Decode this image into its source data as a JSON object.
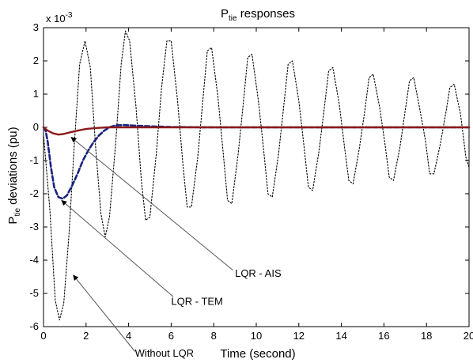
{
  "chart_data": {
    "type": "line",
    "title": {
      "main": "P",
      "sub": "tie",
      "rest": " responses"
    },
    "xlabel": "Time (second)",
    "ylabel": {
      "main": "P",
      "sub": "tie",
      "rest": " deviations (pu)"
    },
    "y_multiplier": {
      "base": "x 10",
      "exp": "-3"
    },
    "xlim": [
      0,
      20
    ],
    "ylim": [
      -6,
      3
    ],
    "xticks": [
      0,
      2,
      4,
      6,
      8,
      10,
      12,
      14,
      16,
      18,
      20
    ],
    "yticks": [
      -6,
      -5,
      -4,
      -3,
      -2,
      -1,
      0,
      1,
      2,
      3
    ],
    "grid": false,
    "series": [
      {
        "name": "Without LQR",
        "color": "#000000",
        "style": "dotted",
        "points": [
          [
            0,
            -0.2
          ],
          [
            0.3,
            -2.5
          ],
          [
            0.55,
            -5.2
          ],
          [
            0.75,
            -5.8
          ],
          [
            0.95,
            -5.3
          ],
          [
            1.2,
            -3.2
          ],
          [
            1.45,
            -0.5
          ],
          [
            1.7,
            1.9
          ],
          [
            1.95,
            2.6
          ],
          [
            2.2,
            1.8
          ],
          [
            2.45,
            -0.6
          ],
          [
            2.7,
            -2.6
          ],
          [
            2.9,
            -3.3
          ],
          [
            3.1,
            -2.7
          ],
          [
            3.4,
            -0.4
          ],
          [
            3.65,
            1.9
          ],
          [
            3.85,
            2.9
          ],
          [
            4.05,
            2.6
          ],
          [
            4.35,
            0.6
          ],
          [
            4.6,
            -1.6
          ],
          [
            4.8,
            -2.8
          ],
          [
            5.0,
            -2.7
          ],
          [
            5.3,
            -0.8
          ],
          [
            5.55,
            1.2
          ],
          [
            5.8,
            2.6
          ],
          [
            6.0,
            2.6
          ],
          [
            6.3,
            0.8
          ],
          [
            6.55,
            -1.1
          ],
          [
            6.75,
            -2.4
          ],
          [
            6.95,
            -2.4
          ],
          [
            7.25,
            -0.9
          ],
          [
            7.5,
            0.9
          ],
          [
            7.7,
            2.3
          ],
          [
            7.9,
            2.4
          ],
          [
            8.2,
            0.9
          ],
          [
            8.45,
            -0.8
          ],
          [
            8.65,
            -2.2
          ],
          [
            8.85,
            -2.3
          ],
          [
            9.15,
            -0.8
          ],
          [
            9.4,
            0.8
          ],
          [
            9.6,
            2.1
          ],
          [
            9.8,
            2.2
          ],
          [
            10.1,
            0.8
          ],
          [
            10.35,
            -0.7
          ],
          [
            10.55,
            -2.0
          ],
          [
            10.75,
            -2.1
          ],
          [
            11.05,
            -0.8
          ],
          [
            11.3,
            0.7
          ],
          [
            11.5,
            1.9
          ],
          [
            11.7,
            2.0
          ],
          [
            12.0,
            0.8
          ],
          [
            12.25,
            -0.6
          ],
          [
            12.45,
            -1.8
          ],
          [
            12.65,
            -1.9
          ],
          [
            12.95,
            -0.7
          ],
          [
            13.2,
            0.6
          ],
          [
            13.4,
            1.7
          ],
          [
            13.6,
            1.8
          ],
          [
            13.9,
            0.7
          ],
          [
            14.15,
            -0.6
          ],
          [
            14.35,
            -1.6
          ],
          [
            14.55,
            -1.7
          ],
          [
            14.85,
            -0.6
          ],
          [
            15.1,
            0.5
          ],
          [
            15.3,
            1.5
          ],
          [
            15.5,
            1.6
          ],
          [
            15.8,
            0.6
          ],
          [
            16.05,
            -0.5
          ],
          [
            16.25,
            -1.5
          ],
          [
            16.45,
            -1.6
          ],
          [
            16.75,
            -0.6
          ],
          [
            17.0,
            0.5
          ],
          [
            17.2,
            1.4
          ],
          [
            17.4,
            1.5
          ],
          [
            17.7,
            0.5
          ],
          [
            17.95,
            -0.4
          ],
          [
            18.15,
            -1.4
          ],
          [
            18.35,
            -1.4
          ],
          [
            18.65,
            -0.5
          ],
          [
            18.9,
            0.4
          ],
          [
            19.1,
            1.2
          ],
          [
            19.3,
            1.3
          ],
          [
            19.6,
            0.4
          ],
          [
            19.85,
            -0.9
          ],
          [
            20.0,
            -1.2
          ]
        ]
      },
      {
        "name": "LQR - TEM",
        "color": "#1a237e",
        "style": "dashed",
        "points": [
          [
            0,
            0
          ],
          [
            0.1,
            -0.1
          ],
          [
            0.2,
            -0.45
          ],
          [
            0.35,
            -1.2
          ],
          [
            0.5,
            -1.8
          ],
          [
            0.7,
            -2.1
          ],
          [
            0.9,
            -2.15
          ],
          [
            1.1,
            -2.05
          ],
          [
            1.35,
            -1.75
          ],
          [
            1.6,
            -1.4
          ],
          [
            1.85,
            -1.0
          ],
          [
            2.1,
            -0.7
          ],
          [
            2.35,
            -0.45
          ],
          [
            2.6,
            -0.25
          ],
          [
            2.85,
            -0.1
          ],
          [
            3.1,
            0.0
          ],
          [
            3.4,
            0.06
          ],
          [
            3.8,
            0.07
          ],
          [
            4.3,
            0.05
          ],
          [
            5.0,
            0.03
          ],
          [
            6.0,
            0.01
          ],
          [
            8.0,
            0
          ],
          [
            20,
            0
          ]
        ]
      },
      {
        "name": "LQR - AIS",
        "color": "#8b1a1a",
        "style": "solid",
        "points": [
          [
            0,
            0
          ],
          [
            0.2,
            -0.1
          ],
          [
            0.45,
            -0.18
          ],
          [
            0.7,
            -0.22
          ],
          [
            0.95,
            -0.2
          ],
          [
            1.25,
            -0.15
          ],
          [
            1.6,
            -0.1
          ],
          [
            2.0,
            -0.05
          ],
          [
            2.5,
            -0.02
          ],
          [
            3.0,
            0
          ],
          [
            20,
            0
          ]
        ]
      }
    ],
    "annotations": [
      {
        "label": "LQR - AIS",
        "text_at": [
          9.0,
          -4.5
        ],
        "arrow_from": [
          8.9,
          -4.3
        ],
        "arrow_to": [
          1.3,
          -0.3
        ]
      },
      {
        "label": "LQR - TEM",
        "text_at": [
          6.0,
          -5.35
        ],
        "arrow_from": [
          6.1,
          -5.1
        ],
        "arrow_to": [
          0.85,
          -2.2
        ]
      },
      {
        "label": "Without LQR",
        "text_at": [
          4.3,
          -6.9
        ],
        "arrow_from": [
          4.3,
          -6.75
        ],
        "arrow_to": [
          1.4,
          -4.45
        ]
      }
    ]
  }
}
